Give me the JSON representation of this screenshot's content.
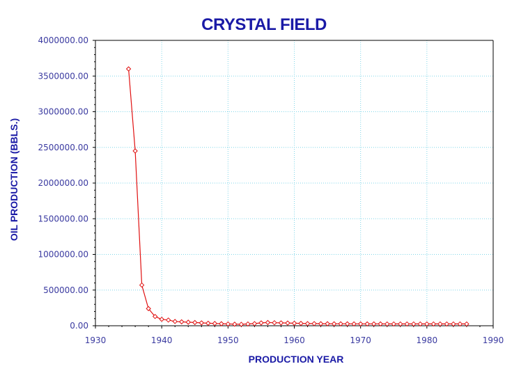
{
  "colors": {
    "title": "#1a1aa6",
    "axis_label": "#1a1aa6",
    "tick_label": "#3a3aa0",
    "grid": "#7fd6e8",
    "axis": "#000000",
    "series": "#e01010"
  },
  "chart_data": {
    "type": "line",
    "title": "CRYSTAL FIELD",
    "xlabel": "PRODUCTION YEAR",
    "ylabel": "OIL PRODUCTION (BBLS.)",
    "xlim": [
      1930,
      1990
    ],
    "ylim": [
      0,
      4000000
    ],
    "xticks": [
      "1930",
      "1940",
      "1950",
      "1960",
      "1970",
      "1980",
      "1990"
    ],
    "yticks": [
      "0.00",
      "500000.00",
      "1000000.00",
      "1500000.00",
      "2000000.00",
      "2500000.00",
      "3000000.00",
      "3500000.00",
      "4000000.00"
    ],
    "grid": true,
    "marker": "diamond",
    "series": [
      {
        "x": [
          1935,
          1936,
          1937,
          1938,
          1939,
          1940,
          1941,
          1942,
          1943,
          1944,
          1945,
          1946,
          1947,
          1948,
          1949,
          1950,
          1951,
          1952,
          1953,
          1954,
          1955,
          1956,
          1957,
          1958,
          1959,
          1960,
          1961,
          1962,
          1963,
          1964,
          1965,
          1966,
          1967,
          1968,
          1969,
          1970,
          1971,
          1972,
          1973,
          1974,
          1975,
          1976,
          1977,
          1978,
          1979,
          1980,
          1981,
          1982,
          1983,
          1984,
          1985,
          1986
        ],
        "values": [
          3600000,
          2450000,
          570000,
          240000,
          130000,
          90000,
          80000,
          60000,
          55000,
          50000,
          45000,
          40000,
          35000,
          32000,
          28000,
          25000,
          22000,
          20000,
          25000,
          30000,
          40000,
          45000,
          42000,
          40000,
          38000,
          35000,
          33000,
          30000,
          30000,
          28000,
          28000,
          27000,
          27000,
          27000,
          26000,
          26000,
          26000,
          26000,
          26000,
          25000,
          25000,
          25000,
          25000,
          25000,
          25000,
          25000,
          25000,
          25000,
          25000,
          25000,
          25000,
          25000
        ]
      }
    ]
  }
}
